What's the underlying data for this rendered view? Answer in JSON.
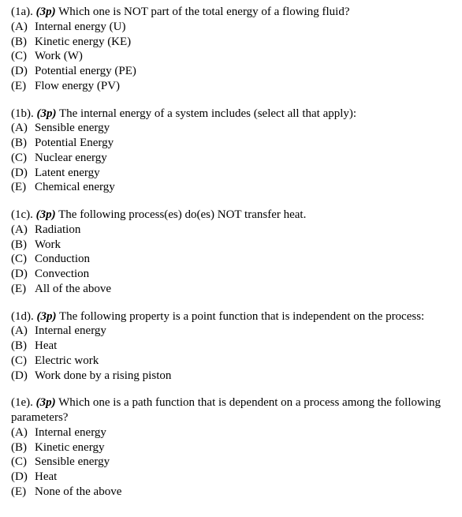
{
  "questions": [
    {
      "number": "(1a).",
      "points": "(3p)",
      "text": "Which one is NOT part of the total energy of a flowing fluid?",
      "options": [
        {
          "letter": "(A)",
          "text": "Internal energy (U)"
        },
        {
          "letter": "(B)",
          "text": "Kinetic energy (KE)"
        },
        {
          "letter": "(C)",
          "text": "Work (W)"
        },
        {
          "letter": "(D)",
          "text": "Potential energy (PE)"
        },
        {
          "letter": "(E)",
          "text": "Flow energy (PV)"
        }
      ]
    },
    {
      "number": "(1b).",
      "points": "(3p)",
      "text": "The internal energy of a system includes (select all that apply):",
      "options": [
        {
          "letter": "(A)",
          "text": "Sensible energy"
        },
        {
          "letter": "(B)",
          "text": "Potential Energy"
        },
        {
          "letter": "(C)",
          "text": "Nuclear energy"
        },
        {
          "letter": "(D)",
          "text": "Latent energy"
        },
        {
          "letter": "(E)",
          "text": "Chemical energy"
        }
      ]
    },
    {
      "number": "(1c).",
      "points": "(3p)",
      "text": "The following process(es) do(es) NOT transfer heat.",
      "options": [
        {
          "letter": "(A)",
          "text": "Radiation"
        },
        {
          "letter": "(B)",
          "text": "Work"
        },
        {
          "letter": "(C)",
          "text": "Conduction"
        },
        {
          "letter": "(D)",
          "text": "Convection"
        },
        {
          "letter": "(E)",
          "text": "All of the above"
        }
      ]
    },
    {
      "number": "(1d).",
      "points": "(3p)",
      "text": "The following property is a point function that is independent on the process:",
      "options": [
        {
          "letter": "(A)",
          "text": "Internal energy"
        },
        {
          "letter": "(B)",
          "text": "Heat"
        },
        {
          "letter": "(C)",
          "text": "Electric work"
        },
        {
          "letter": "(D)",
          "text": "Work done  by a rising piston"
        }
      ]
    },
    {
      "number": "(1e).",
      "points": "(3p)",
      "text": "Which one is a path function that is dependent on a process among the following parameters?",
      "options": [
        {
          "letter": "(A)",
          "text": "Internal energy"
        },
        {
          "letter": "(B)",
          "text": "Kinetic energy"
        },
        {
          "letter": "(C)",
          "text": "Sensible energy"
        },
        {
          "letter": "(D)",
          "text": "Heat"
        },
        {
          "letter": "(E)",
          "text": "None of the above"
        }
      ]
    }
  ]
}
